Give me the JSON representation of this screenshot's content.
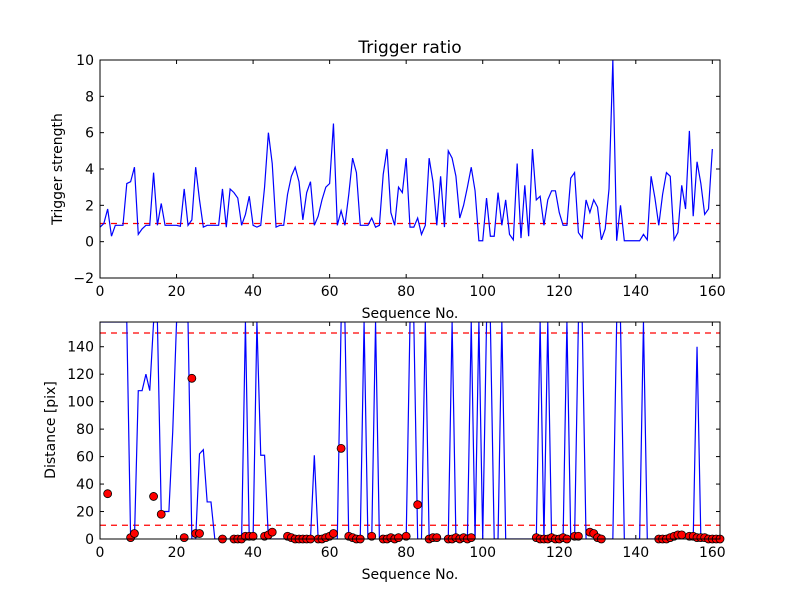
{
  "chart_data": [
    {
      "type": "line",
      "title": "Trigger ratio",
      "xlabel": "Sequence No.",
      "ylabel": "Trigger strength",
      "xlim": [
        0,
        162
      ],
      "ylim": [
        -2,
        10
      ],
      "xticks": [
        0,
        20,
        40,
        60,
        80,
        100,
        120,
        140,
        160
      ],
      "yticks": [
        -2,
        0,
        2,
        4,
        6,
        8,
        10
      ],
      "threshold": 1.0,
      "line_color": "#0000ff",
      "threshold_color": "#ff0000",
      "series": [
        {
          "values": [
            0.8,
            1.0,
            1.8,
            0.3,
            0.9,
            0.9,
            0.9,
            3.2,
            3.3,
            4.1,
            0.4,
            0.7,
            0.9,
            0.9,
            3.8,
            0.9,
            2.1,
            0.9,
            0.9,
            0.9,
            0.9,
            0.85,
            2.9,
            0.9,
            1.2,
            4.1,
            2.3,
            0.8,
            0.9,
            0.9,
            0.9,
            0.9,
            2.9,
            0.8,
            2.9,
            2.7,
            2.4,
            0.9,
            1.5,
            2.5,
            0.9,
            0.8,
            0.9,
            3.0,
            6.0,
            4.3,
            0.8,
            0.9,
            0.9,
            2.6,
            3.6,
            4.1,
            3.3,
            1.2,
            2.7,
            3.3,
            0.9,
            1.4,
            2.3,
            3.0,
            3.2,
            6.5,
            0.9,
            1.7,
            0.9,
            2.6,
            4.6,
            3.8,
            0.9,
            0.9,
            0.9,
            1.3,
            0.8,
            0.9,
            3.7,
            5.1,
            1.6,
            0.9,
            3.0,
            2.7,
            4.6,
            0.8,
            0.8,
            1.3,
            0.4,
            0.9,
            4.6,
            3.3,
            0.9,
            3.6,
            0.8,
            5.0,
            4.6,
            3.6,
            1.3,
            2.0,
            3.0,
            4.1,
            2.8,
            0.05,
            0.05,
            2.4,
            0.3,
            0.3,
            2.7,
            0.9,
            2.3,
            0.4,
            0.1,
            4.3,
            0.2,
            3.1,
            0.3,
            5.1,
            2.3,
            2.5,
            0.9,
            2.3,
            2.8,
            2.8,
            1.6,
            0.9,
            0.9,
            3.5,
            3.8,
            0.5,
            0.2,
            2.3,
            1.6,
            2.3,
            1.9,
            0.1,
            0.7,
            2.9,
            10.0,
            0.05,
            2.0,
            0.05,
            0.05,
            0.05,
            0.05,
            0.05,
            0.4,
            0.1,
            3.6,
            2.4,
            0.9,
            2.6,
            3.8,
            3.6,
            0.1,
            0.5,
            3.1,
            1.8,
            6.1,
            1.4,
            4.4,
            3.2,
            1.5,
            1.8,
            5.1
          ]
        }
      ]
    },
    {
      "type": "line",
      "xlabel": "Sequence No.",
      "ylabel": "Distance [pix]",
      "xlim": [
        0,
        162
      ],
      "ylim": [
        0,
        158
      ],
      "xticks": [
        0,
        20,
        40,
        60,
        80,
        100,
        120,
        140,
        160
      ],
      "yticks": [
        0,
        20,
        40,
        60,
        80,
        100,
        120,
        140
      ],
      "thresholds": [
        10,
        150
      ],
      "line_color": "#0000ff",
      "threshold_color": "#ff0000",
      "marker_color": "#ff0000",
      "series": [
        {
          "values": [
            158,
            158,
            158,
            158,
            158,
            158,
            158,
            158,
            0,
            0,
            108,
            108,
            120,
            108,
            158,
            158,
            20,
            20,
            20,
            78,
            158,
            158,
            158,
            158,
            0,
            0,
            62,
            65,
            27,
            27,
            0,
            0,
            0,
            0,
            0,
            0,
            0,
            0,
            158,
            0,
            0,
            158,
            61,
            61,
            0,
            0,
            0,
            0,
            0,
            0,
            0,
            0,
            0,
            0,
            0,
            0,
            61,
            0,
            0,
            0,
            0,
            0,
            0,
            158,
            158,
            0,
            0,
            0,
            0,
            158,
            0,
            0,
            158,
            0,
            0,
            0,
            0,
            0,
            0,
            0,
            0,
            158,
            158,
            0,
            0,
            158,
            0,
            0,
            0,
            0,
            0,
            0,
            158,
            0,
            0,
            0,
            0,
            158,
            0,
            158,
            0,
            158,
            158,
            0,
            0,
            158,
            0,
            0,
            0,
            0,
            0,
            0,
            0,
            0,
            0,
            158,
            0,
            158,
            0,
            0,
            0,
            0,
            158,
            0,
            0,
            158,
            158,
            0,
            0,
            0,
            0,
            0,
            0,
            0,
            0,
            158,
            158,
            0,
            0,
            0,
            0,
            0,
            158,
            0,
            0,
            0,
            0,
            0,
            0,
            0,
            0,
            0,
            0,
            0,
            0,
            0,
            140,
            0,
            0,
            0,
            0,
            0
          ]
        }
      ],
      "markers": {
        "x": [
          2,
          8,
          9,
          14,
          16,
          22,
          24,
          25,
          26,
          32,
          35,
          36,
          37,
          38,
          39,
          40,
          43,
          44,
          45,
          49,
          50,
          51,
          52,
          53,
          54,
          55,
          57,
          58,
          59,
          60,
          61,
          63,
          65,
          66,
          67,
          68,
          71,
          74,
          75,
          76,
          77,
          78,
          80,
          83,
          86,
          87,
          88,
          91,
          92,
          93,
          94,
          95,
          96,
          97,
          114,
          115,
          116,
          117,
          118,
          119,
          120,
          121,
          122,
          124,
          125,
          128,
          129,
          130,
          131,
          146,
          147,
          148,
          149,
          150,
          151,
          152,
          154,
          155,
          156,
          157,
          158,
          159,
          160,
          161,
          162
        ],
        "y": [
          33,
          1,
          4,
          31,
          18,
          1,
          117,
          4,
          4,
          0,
          0,
          0,
          0,
          2,
          2,
          2,
          2,
          3,
          5,
          2,
          1,
          0,
          0,
          0,
          0,
          0,
          0,
          0,
          1,
          2,
          4,
          66,
          2,
          1,
          0,
          0,
          2,
          0,
          0,
          1,
          0,
          1,
          2,
          25,
          0,
          1,
          1,
          0,
          0,
          1,
          0,
          1,
          0,
          1,
          1,
          0,
          0,
          0,
          1,
          0,
          0,
          1,
          0,
          2,
          2,
          5,
          4,
          1,
          0,
          0,
          0,
          0,
          1,
          2,
          3,
          3,
          2,
          2,
          1,
          1,
          1,
          0,
          0,
          0,
          0
        ]
      }
    }
  ]
}
